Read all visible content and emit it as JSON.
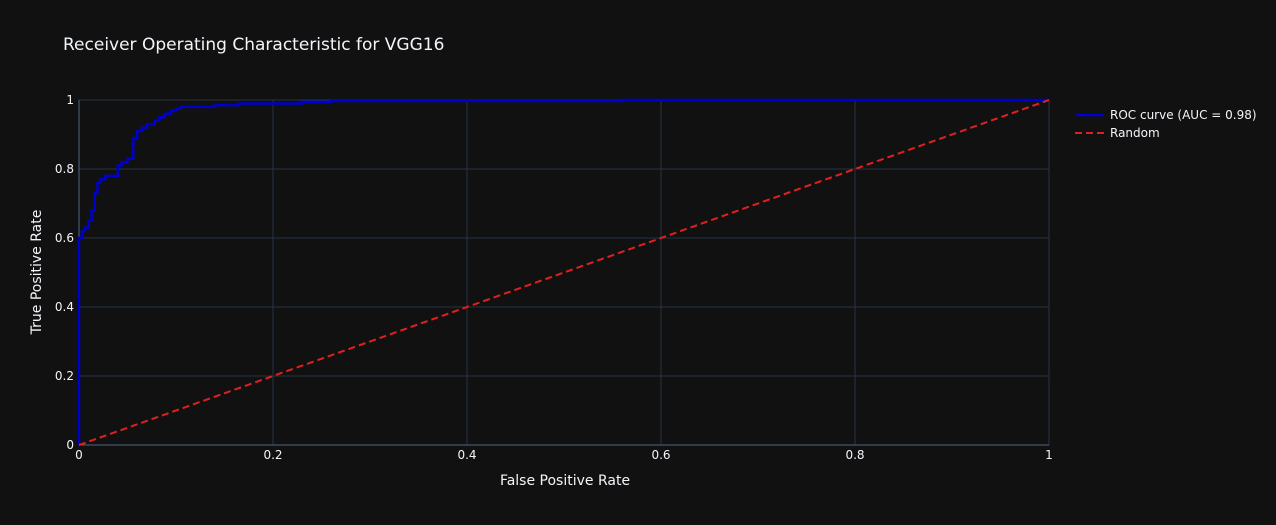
{
  "chart_data": {
    "type": "line",
    "title": "Receiver Operating Characteristic for VGG16",
    "xlabel": "False Positive Rate",
    "ylabel": "True Positive Rate",
    "xlim": [
      0,
      1
    ],
    "ylim": [
      0,
      1
    ],
    "x_ticks": [
      0,
      0.2,
      0.4,
      0.6,
      0.8,
      1
    ],
    "y_ticks": [
      0,
      0.2,
      0.4,
      0.6,
      0.8,
      1
    ],
    "x_tick_labels": [
      "0",
      "0.2",
      "0.4",
      "0.6",
      "0.8",
      "1"
    ],
    "y_tick_labels": [
      "0",
      "0.2",
      "0.4",
      "0.6",
      "0.8",
      "1"
    ],
    "grid": true,
    "legend_position": "top-right",
    "series": [
      {
        "name": "ROC curve (AUC = 0.98)",
        "color": "#0000cd",
        "style": "solid",
        "line_shape": "step",
        "x": [
          0,
          0,
          0.003,
          0.003,
          0.006,
          0.006,
          0.01,
          0.01,
          0.013,
          0.013,
          0.016,
          0.016,
          0.019,
          0.019,
          0.022,
          0.022,
          0.027,
          0.027,
          0.032,
          0.032,
          0.04,
          0.04,
          0.044,
          0.044,
          0.05,
          0.05,
          0.056,
          0.056,
          0.06,
          0.06,
          0.065,
          0.065,
          0.07,
          0.07,
          0.078,
          0.078,
          0.083,
          0.083,
          0.088,
          0.088,
          0.095,
          0.095,
          0.1,
          0.1,
          0.105,
          0.105,
          0.14,
          0.14,
          0.165,
          0.165,
          0.23,
          0.23,
          0.26,
          0.26,
          0.56,
          0.56,
          1.0
        ],
        "y": [
          0,
          0.6,
          0.6,
          0.62,
          0.62,
          0.63,
          0.63,
          0.65,
          0.65,
          0.68,
          0.68,
          0.73,
          0.73,
          0.76,
          0.76,
          0.77,
          0.77,
          0.78,
          0.78,
          0.78,
          0.78,
          0.81,
          0.81,
          0.82,
          0.82,
          0.83,
          0.83,
          0.89,
          0.89,
          0.91,
          0.91,
          0.92,
          0.92,
          0.93,
          0.93,
          0.94,
          0.94,
          0.95,
          0.95,
          0.96,
          0.96,
          0.97,
          0.97,
          0.975,
          0.975,
          0.98,
          0.98,
          0.985,
          0.985,
          0.99,
          0.99,
          0.995,
          0.995,
          0.997,
          0.997,
          1.0,
          1.0
        ]
      },
      {
        "name": "Random",
        "color": "#e02020",
        "style": "dashed",
        "line_shape": "linear",
        "x": [
          0,
          1
        ],
        "y": [
          0,
          1
        ]
      }
    ]
  }
}
